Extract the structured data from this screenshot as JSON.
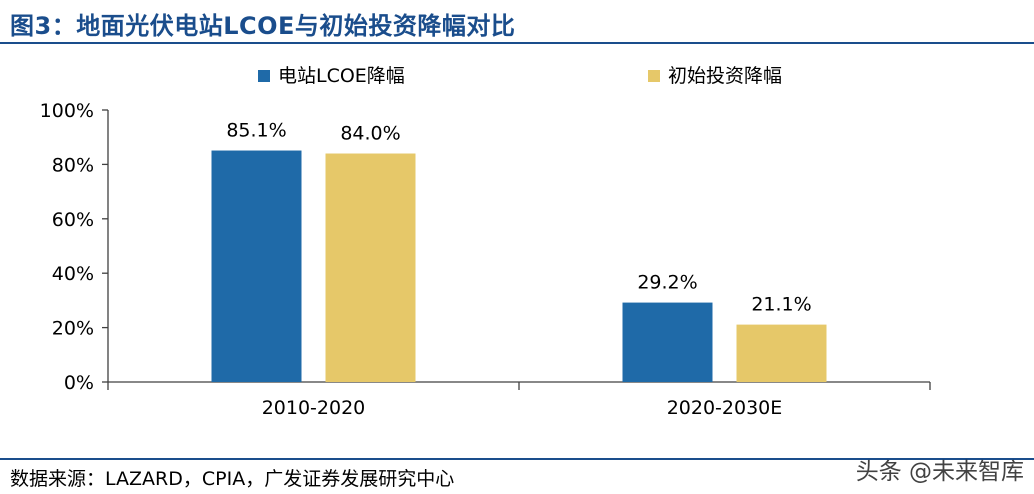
{
  "header": {
    "title": "图3：地面光伏电站LCOE与初始投资降幅对比"
  },
  "footer": {
    "source": "数据来源：LAZARD，CPIA，广发证券发展研究中心",
    "watermark": "头条 @未来智库"
  },
  "colors": {
    "accent": "#1a4d8c",
    "series1": "#1f6aa8",
    "series2": "#e6c869"
  },
  "chart_data": {
    "type": "bar",
    "categories": [
      "2010-2020",
      "2020-2030E"
    ],
    "series": [
      {
        "name": "电站LCOE降幅",
        "values": [
          85.1,
          29.2
        ],
        "labels": [
          "85.1%",
          "29.2%"
        ],
        "color": "#1f6aa8"
      },
      {
        "name": "初始投资降幅",
        "values": [
          84.0,
          21.1
        ],
        "labels": [
          "84.0%",
          "21.1%"
        ],
        "color": "#e6c869"
      }
    ],
    "ylim": [
      0,
      100
    ],
    "yticks": [
      0,
      20,
      40,
      60,
      80,
      100
    ],
    "ytick_labels": [
      "0%",
      "20%",
      "40%",
      "60%",
      "80%",
      "100%"
    ],
    "grid": false,
    "legend": "top"
  }
}
